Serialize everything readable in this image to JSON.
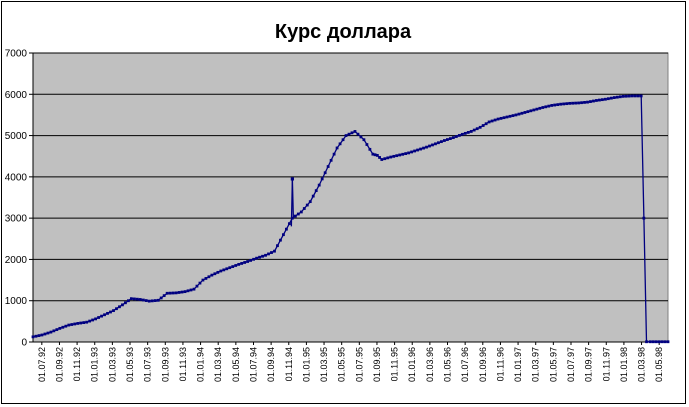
{
  "chart_data": {
    "type": "line",
    "title": "Курс доллара",
    "xlabel": "",
    "ylabel": "",
    "ylim": [
      0,
      7000
    ],
    "yticks": [
      "0",
      "1000",
      "2000",
      "3000",
      "4000",
      "5000",
      "6000",
      "7000"
    ],
    "xlim": [
      0,
      71
    ],
    "grid": {
      "horizontal": true,
      "vertical": false
    },
    "legend": "none",
    "colors": {
      "line": "#000080",
      "marker": "#000080",
      "plot_bg": "#c0c0c0",
      "grid": "#000000"
    },
    "xtick_labels": [
      "01.07.92",
      "01.09.92",
      "01.11.92",
      "01.01.93",
      "01.03.93",
      "01.05.93",
      "01.07.93",
      "01.09.93",
      "01.11.93",
      "01.01.94",
      "01.03.94",
      "01.05.94",
      "01.07.94",
      "01.09.94",
      "01.11.94",
      "01.01.95",
      "01.03.95",
      "01.05.95",
      "01.07.95",
      "01.09.95",
      "01.11.95",
      "01.01.96",
      "01.03.96",
      "01.05.96",
      "01.07.96",
      "01.09.96",
      "01.11.96",
      "01.01.97",
      "01.03.97",
      "01.05.97",
      "01.07.97",
      "01.09.97",
      "01.11.97",
      "01.01.98",
      "01.03.98",
      "01.05.98"
    ],
    "series": [
      {
        "x": [
          0,
          1,
          2,
          3,
          4,
          5,
          6,
          7,
          8,
          9,
          10,
          11,
          12,
          13,
          14,
          15,
          16,
          17,
          18,
          19,
          20,
          21,
          22,
          23,
          24,
          25,
          26,
          27,
          28,
          29,
          30,
          31,
          32,
          33,
          34,
          35,
          36,
          37,
          38,
          38.5,
          39,
          40,
          41,
          42,
          43,
          44,
          45,
          46,
          47,
          48,
          49,
          50,
          51,
          52,
          53,
          54,
          55,
          56,
          57,
          58,
          59,
          60,
          61,
          62,
          63,
          64,
          65,
          66,
          67,
          68,
          68.3,
          68.6,
          69,
          70,
          71
        ],
        "y": [
          125,
          170,
          240,
          330,
          410,
          450,
          480,
          560,
          660,
          760,
          900,
          1050,
          1030,
          990,
          1010,
          1180,
          1190,
          1220,
          1280,
          1500,
          1620,
          1720,
          1800,
          1880,
          1950,
          2030,
          2100,
          2200,
          2600,
          3000,
          3150,
          3400,
          3800,
          4250,
          4700,
          5000,
          5100,
          4900,
          4550,
          4520,
          4420,
          4480,
          4530,
          4580,
          4650,
          4720,
          4800,
          4880,
          4950,
          5030,
          5100,
          5200,
          5330,
          5400,
          5450,
          5500,
          5560,
          5620,
          5680,
          5730,
          5760,
          5780,
          5790,
          5810,
          5850,
          5880,
          5920,
          5950,
          5960,
          5960,
          3000,
          6,
          6,
          6,
          6
        ]
      }
    ]
  }
}
